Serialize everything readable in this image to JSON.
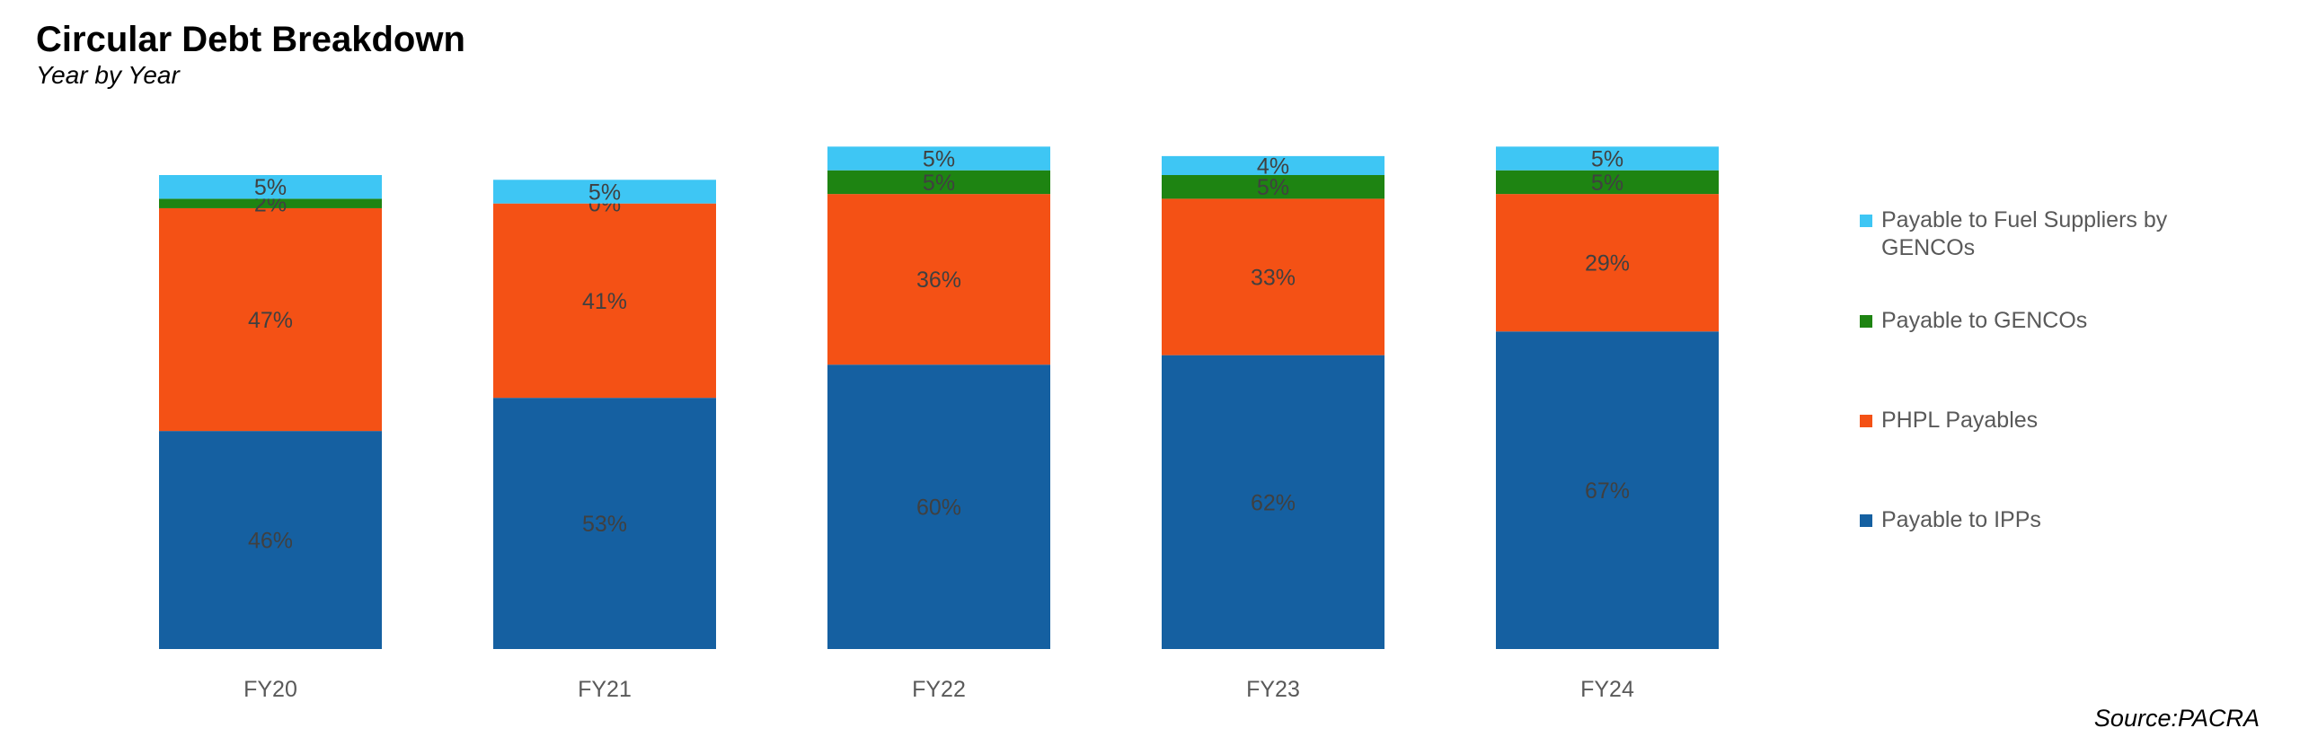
{
  "title": "Circular Debt Breakdown",
  "subtitle": "Year by Year",
  "source": "Source:PACRA",
  "chart_data": {
    "type": "bar",
    "stacked": true,
    "normalized": true,
    "categories": [
      "FY20",
      "FY21",
      "FY22",
      "FY23",
      "FY24"
    ],
    "series": [
      {
        "name": "Payable to IPPs",
        "color": "#1560A1",
        "values": [
          46,
          53,
          60,
          62,
          67
        ],
        "labels": [
          "46%",
          "53%",
          "60%",
          "62%",
          "67%"
        ]
      },
      {
        "name": "PHPL Payables",
        "color": "#F45115",
        "values": [
          47,
          41,
          36,
          33,
          29
        ],
        "labels": [
          "47%",
          "41%",
          "36%",
          "33%",
          "29%"
        ]
      },
      {
        "name": "Payable to GENCOs",
        "color": "#1E8412",
        "values": [
          2,
          0,
          5,
          5,
          5
        ],
        "labels": [
          "2%",
          "0%",
          "5%",
          "5%",
          "5%"
        ]
      },
      {
        "name": "Payable to Fuel Suppliers by GENCOs",
        "color": "#3EC6F4",
        "values": [
          5,
          5,
          5,
          4,
          5
        ],
        "labels": [
          "5%",
          "5%",
          "5%",
          "4%",
          "5%"
        ]
      }
    ],
    "legend_position": "right",
    "grid": false
  }
}
